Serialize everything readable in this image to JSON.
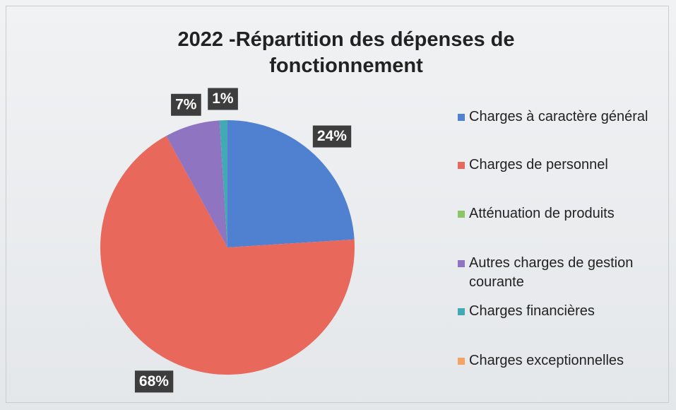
{
  "chart_data": {
    "type": "pie",
    "title": "2022 -Répartition des dépenses de fonctionnement",
    "categories": [
      "Charges à caractère général",
      "Charges de personnel",
      "Atténuation de produits",
      "Autres charges de gestion courante",
      "Charges financières",
      "Charges exceptionnelles"
    ],
    "values": [
      24,
      68,
      0,
      7,
      1,
      0
    ],
    "value_labels": [
      "24%",
      "68%",
      null,
      "7%",
      "1%",
      null
    ],
    "colors": [
      "#4f81d0",
      "#e8685c",
      "#8cc568",
      "#8f74c2",
      "#43a9b4",
      "#f4a366"
    ],
    "legend": "right"
  }
}
